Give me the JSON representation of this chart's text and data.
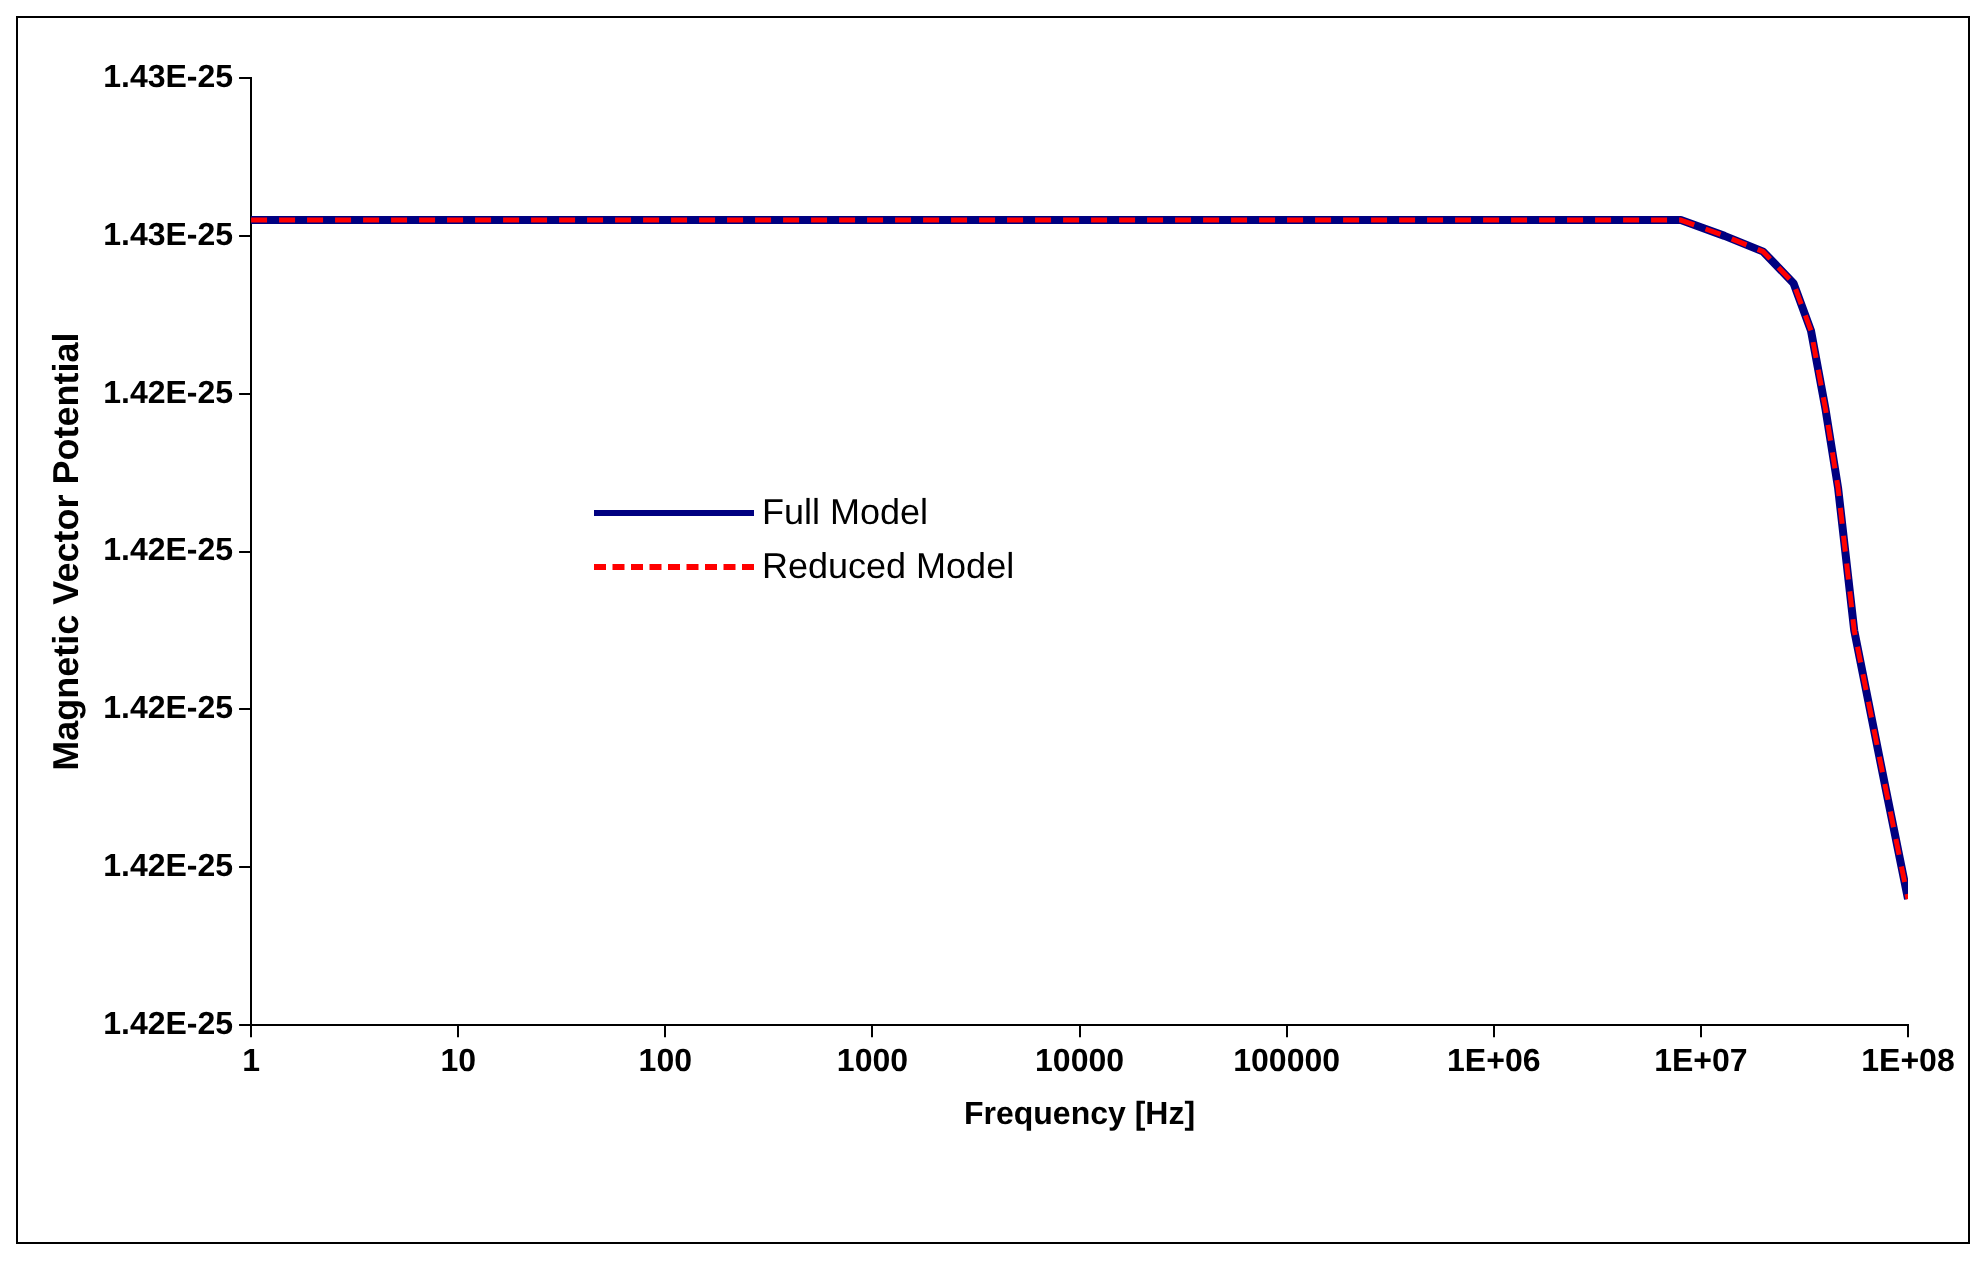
{
  "chart_data": {
    "type": "line",
    "xlabel": "Frequency [Hz]",
    "ylabel": "Magnetic Vector Potential",
    "log": "x",
    "x": [
      1,
      10,
      100,
      1000,
      10000,
      100000,
      1000000,
      4000000,
      8000000,
      13000000,
      20000000,
      28000000,
      34000000,
      40000000,
      46000000,
      55000000,
      78000000,
      100000000
    ],
    "series": [
      {
        "name": "Full Model",
        "color": "#000080",
        "line_style": "solid",
        "values": [
          1.4251e-25,
          1.4251e-25,
          1.4251e-25,
          1.4251e-25,
          1.4251e-25,
          1.4251e-25,
          1.4251e-25,
          1.4251e-25,
          1.4251e-25,
          1.425e-25,
          1.4249e-25,
          1.4247e-25,
          1.4244e-25,
          1.4239e-25,
          1.4234e-25,
          1.4225e-25,
          1.4215e-25,
          1.4208e-25
        ]
      },
      {
        "name": "Reduced Model",
        "color": "#ff0000",
        "line_style": "dashed",
        "values": [
          1.4251e-25,
          1.4251e-25,
          1.4251e-25,
          1.4251e-25,
          1.4251e-25,
          1.4251e-25,
          1.4251e-25,
          1.4251e-25,
          1.4251e-25,
          1.425e-25,
          1.4249e-25,
          1.4247e-25,
          1.4244e-25,
          1.4239e-25,
          1.4234e-25,
          1.4225e-25,
          1.4215e-25,
          1.4208e-25
        ]
      }
    ],
    "xlim": [
      1,
      100000000
    ],
    "xticks": [
      1,
      10,
      100,
      1000,
      10000,
      100000,
      {
        "value": 1000000,
        "label": "1E+06"
      },
      {
        "value": 10000000,
        "label": "1E+07"
      },
      {
        "value": 100000000,
        "label": "1E+08"
      }
    ],
    "ylim": [
      1.42e-25,
      1.426e-25
    ],
    "yticks": [
      {
        "value": 1.42e-25,
        "label": "1.42E-25"
      },
      {
        "value": 1.421e-25,
        "label": "1.42E-25"
      },
      {
        "value": 1.422e-25,
        "label": "1.42E-25"
      },
      {
        "value": 1.423e-25,
        "label": "1.42E-25"
      },
      {
        "value": 1.424e-25,
        "label": "1.42E-25"
      },
      {
        "value": 1.425e-25,
        "label": "1.43E-25"
      },
      {
        "value": 1.426e-25,
        "label": "1.43E-25"
      }
    ],
    "grid": false,
    "legend": "left",
    "marker": "none"
  }
}
